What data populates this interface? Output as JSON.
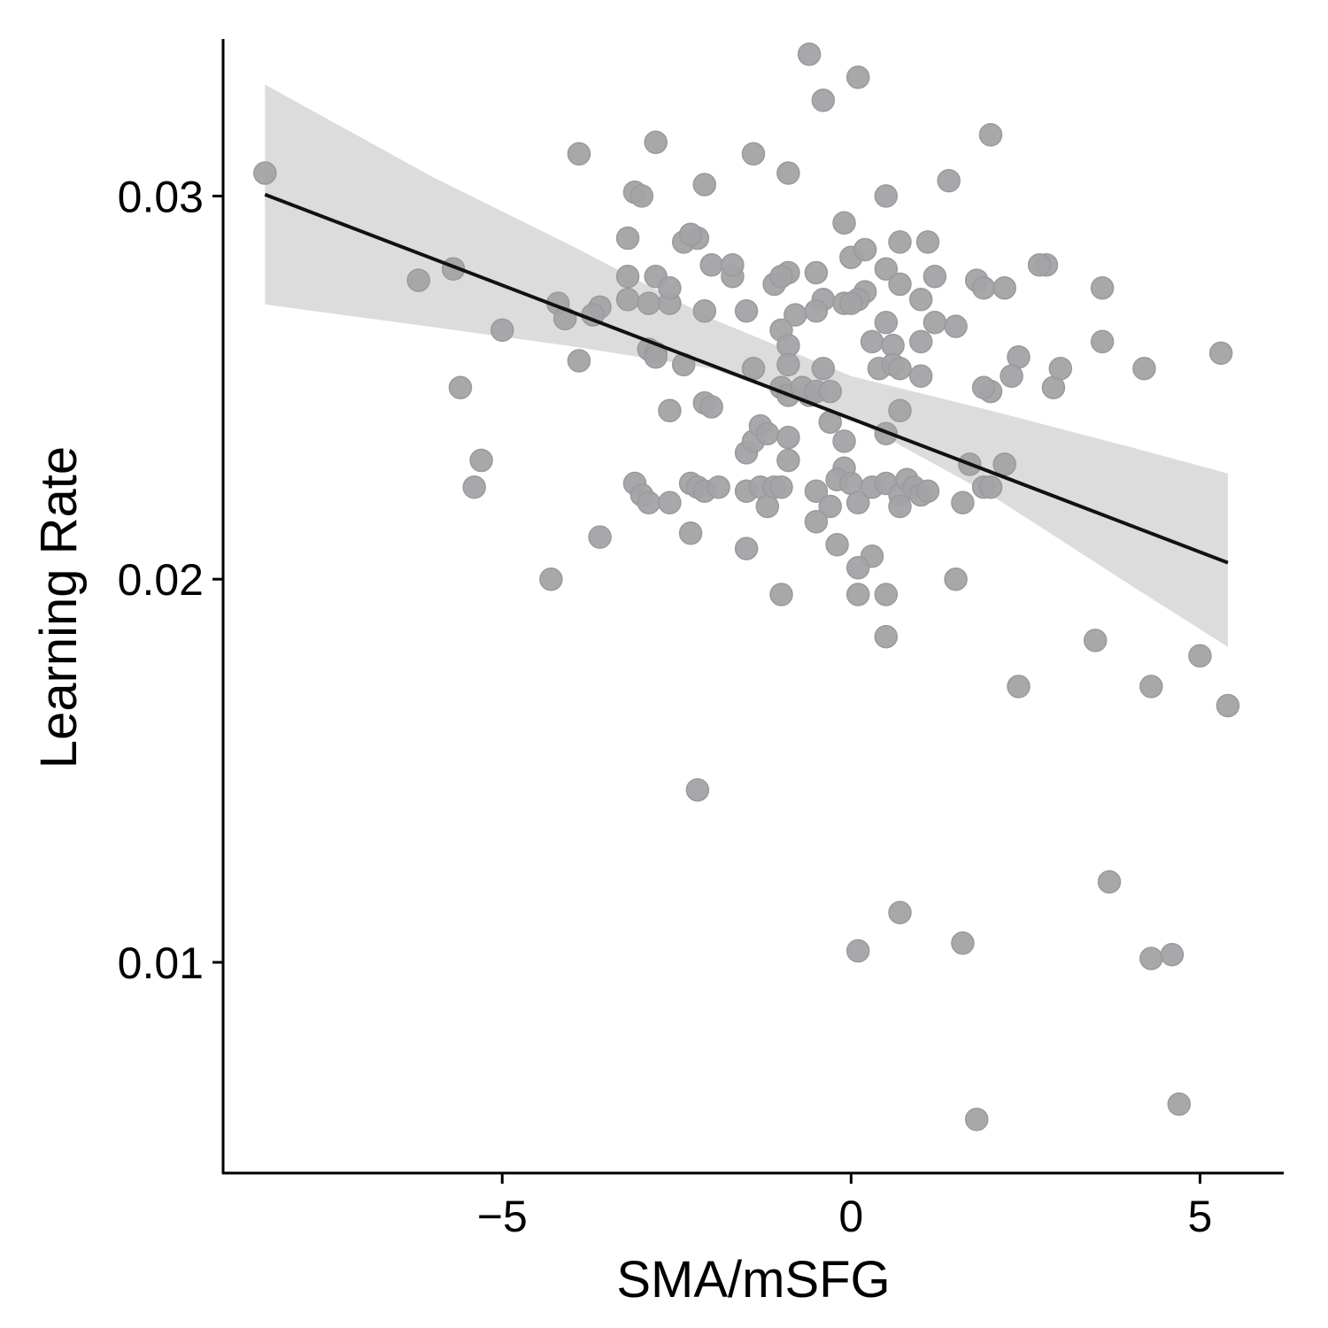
{
  "chart_data": {
    "type": "scatter",
    "title": "",
    "xlabel": "SMA/mSFG",
    "ylabel": "Learning Rate",
    "xlim": [
      -9.0,
      6.2
    ],
    "ylim": [
      0.0045,
      0.0341
    ],
    "x_ticks": [
      {
        "value": -5,
        "label": "−5"
      },
      {
        "value": 0,
        "label": "0"
      },
      {
        "value": 5,
        "label": "5"
      }
    ],
    "y_ticks": [
      {
        "value": 0.01,
        "label": "0.01"
      },
      {
        "value": 0.02,
        "label": "0.02"
      },
      {
        "value": 0.03,
        "label": "0.03"
      }
    ],
    "grid": false,
    "colors": {
      "points": "#a3a3a6",
      "points_stroke": "#9a9a9d",
      "fit_line": "#111111",
      "ci_band": "#dcdcdc",
      "axis": "#000000"
    },
    "points": [
      [
        -8.4,
        0.0306
      ],
      [
        -6.2,
        0.0278
      ],
      [
        -5.7,
        0.0281
      ],
      [
        -5.0,
        0.0265
      ],
      [
        -5.6,
        0.025
      ],
      [
        -5.3,
        0.0231
      ],
      [
        -5.4,
        0.0224
      ],
      [
        -4.3,
        0.02
      ],
      [
        -3.9,
        0.0311
      ],
      [
        -4.2,
        0.0272
      ],
      [
        -4.1,
        0.0268
      ],
      [
        -3.9,
        0.0257
      ],
      [
        -3.6,
        0.0271
      ],
      [
        -3.7,
        0.0269
      ],
      [
        -3.6,
        0.0211
      ],
      [
        -3.1,
        0.0301
      ],
      [
        -3.0,
        0.03
      ],
      [
        -2.8,
        0.0314
      ],
      [
        -3.2,
        0.0289
      ],
      [
        -3.2,
        0.0279
      ],
      [
        -3.2,
        0.0273
      ],
      [
        -2.9,
        0.0272
      ],
      [
        -2.6,
        0.0272
      ],
      [
        -2.8,
        0.0279
      ],
      [
        -2.6,
        0.0276
      ],
      [
        -2.4,
        0.0288
      ],
      [
        -2.2,
        0.0289
      ],
      [
        -2.3,
        0.029
      ],
      [
        -2.1,
        0.0303
      ],
      [
        -2.0,
        0.0282
      ],
      [
        -2.1,
        0.027
      ],
      [
        -1.7,
        0.0279
      ],
      [
        -1.7,
        0.0282
      ],
      [
        -1.5,
        0.027
      ],
      [
        -2.9,
        0.026
      ],
      [
        -2.8,
        0.0259
      ],
      [
        -2.8,
        0.0258
      ],
      [
        -2.4,
        0.0256
      ],
      [
        -2.1,
        0.0246
      ],
      [
        -2.0,
        0.0245
      ],
      [
        -2.6,
        0.0244
      ],
      [
        -3.1,
        0.0225
      ],
      [
        -3.0,
        0.0222
      ],
      [
        -2.9,
        0.022
      ],
      [
        -2.6,
        0.022
      ],
      [
        -2.3,
        0.0225
      ],
      [
        -2.2,
        0.0224
      ],
      [
        -2.1,
        0.0223
      ],
      [
        -1.9,
        0.0224
      ],
      [
        -2.3,
        0.0212
      ],
      [
        -1.5,
        0.0233
      ],
      [
        -1.4,
        0.0236
      ],
      [
        -1.3,
        0.024
      ],
      [
        -1.2,
        0.0238
      ],
      [
        -1.4,
        0.0255
      ],
      [
        -1.5,
        0.0223
      ],
      [
        -1.3,
        0.0224
      ],
      [
        -1.2,
        0.0219
      ],
      [
        -1.1,
        0.0224
      ],
      [
        -1.0,
        0.0224
      ],
      [
        -1.5,
        0.0208
      ],
      [
        -2.2,
        0.0145
      ],
      [
        -1.4,
        0.0311
      ],
      [
        -0.9,
        0.0306
      ],
      [
        -0.6,
        0.0337
      ],
      [
        -0.4,
        0.0325
      ],
      [
        0.1,
        0.0331
      ],
      [
        -1.1,
        0.0277
      ],
      [
        -0.9,
        0.028
      ],
      [
        -1.0,
        0.0279
      ],
      [
        -0.5,
        0.028
      ],
      [
        -0.8,
        0.0269
      ],
      [
        -1.0,
        0.0265
      ],
      [
        -0.4,
        0.0273
      ],
      [
        -0.5,
        0.027
      ],
      [
        -0.9,
        0.0261
      ],
      [
        -0.9,
        0.0256
      ],
      [
        -0.4,
        0.0255
      ],
      [
        -1.0,
        0.025
      ],
      [
        -0.9,
        0.0248
      ],
      [
        -0.6,
        0.0248
      ],
      [
        -0.7,
        0.025
      ],
      [
        -0.5,
        0.0249
      ],
      [
        -0.3,
        0.0249
      ],
      [
        -0.3,
        0.0241
      ],
      [
        -0.1,
        0.0236
      ],
      [
        -0.9,
        0.0237
      ],
      [
        -0.9,
        0.0231
      ],
      [
        -0.1,
        0.0229
      ],
      [
        -0.2,
        0.0226
      ],
      [
        -0.5,
        0.0223
      ],
      [
        -0.3,
        0.0219
      ],
      [
        -0.5,
        0.0215
      ],
      [
        -0.2,
        0.0209
      ],
      [
        -1.0,
        0.0196
      ],
      [
        -0.1,
        0.0293
      ],
      [
        0.0,
        0.0284
      ],
      [
        0.2,
        0.0286
      ],
      [
        0.5,
        0.03
      ],
      [
        0.7,
        0.0288
      ],
      [
        1.1,
        0.0288
      ],
      [
        0.5,
        0.0281
      ],
      [
        0.7,
        0.0277
      ],
      [
        1.2,
        0.0279
      ],
      [
        1.0,
        0.0273
      ],
      [
        0.2,
        0.0275
      ],
      [
        0.1,
        0.0273
      ],
      [
        -0.1,
        0.0272
      ],
      [
        0.0,
        0.0272
      ],
      [
        0.5,
        0.0267
      ],
      [
        0.3,
        0.0262
      ],
      [
        0.6,
        0.0261
      ],
      [
        1.0,
        0.0262
      ],
      [
        1.2,
        0.0267
      ],
      [
        1.5,
        0.0266
      ],
      [
        0.4,
        0.0255
      ],
      [
        0.6,
        0.0256
      ],
      [
        0.7,
        0.0255
      ],
      [
        1.0,
        0.0253
      ],
      [
        0.0,
        0.0225
      ],
      [
        0.1,
        0.022
      ],
      [
        0.3,
        0.0224
      ],
      [
        0.5,
        0.0225
      ],
      [
        0.7,
        0.0222
      ],
      [
        0.8,
        0.0226
      ],
      [
        0.9,
        0.0224
      ],
      [
        1.0,
        0.0222
      ],
      [
        1.1,
        0.0223
      ],
      [
        0.7,
        0.0219
      ],
      [
        0.5,
        0.0238
      ],
      [
        0.7,
        0.0244
      ],
      [
        0.3,
        0.0206
      ],
      [
        0.1,
        0.0203
      ],
      [
        0.1,
        0.0196
      ],
      [
        0.5,
        0.0196
      ],
      [
        0.5,
        0.0185
      ],
      [
        0.1,
        0.0103
      ],
      [
        0.7,
        0.0113
      ],
      [
        1.4,
        0.0304
      ],
      [
        2.0,
        0.0316
      ],
      [
        1.8,
        0.0278
      ],
      [
        1.9,
        0.0276
      ],
      [
        2.2,
        0.0276
      ],
      [
        2.8,
        0.0282
      ],
      [
        2.7,
        0.0282
      ],
      [
        3.6,
        0.0276
      ],
      [
        3.6,
        0.0262
      ],
      [
        2.4,
        0.0258
      ],
      [
        2.3,
        0.0253
      ],
      [
        2.0,
        0.0249
      ],
      [
        1.9,
        0.025
      ],
      [
        2.9,
        0.025
      ],
      [
        3.0,
        0.0255
      ],
      [
        4.2,
        0.0255
      ],
      [
        5.3,
        0.0259
      ],
      [
        1.7,
        0.023
      ],
      [
        2.2,
        0.023
      ],
      [
        1.9,
        0.0224
      ],
      [
        2.0,
        0.0224
      ],
      [
        1.6,
        0.022
      ],
      [
        1.5,
        0.02
      ],
      [
        2.4,
        0.0172
      ],
      [
        3.5,
        0.0184
      ],
      [
        4.3,
        0.0172
      ],
      [
        5.0,
        0.018
      ],
      [
        5.4,
        0.0167
      ],
      [
        3.7,
        0.0121
      ],
      [
        1.6,
        0.0105
      ],
      [
        4.3,
        0.0101
      ],
      [
        4.6,
        0.0102
      ],
      [
        1.8,
        0.0059
      ],
      [
        4.7,
        0.0063
      ]
    ],
    "fit_line": {
      "x": [
        -8.4,
        5.4
      ],
      "y": [
        0.03004,
        0.02043
      ]
    },
    "confidence_band": {
      "x": [
        -8.4,
        -6.0,
        -4.0,
        -2.0,
        0.0,
        2.0,
        4.0,
        5.4
      ],
      "lower": [
        0.02717,
        0.02658,
        0.02608,
        0.0255,
        0.0242,
        0.0222,
        0.01985,
        0.01823
      ],
      "upper": [
        0.03291,
        0.0305,
        0.0287,
        0.0268,
        0.0253,
        0.0244,
        0.02345,
        0.02276
      ]
    }
  }
}
